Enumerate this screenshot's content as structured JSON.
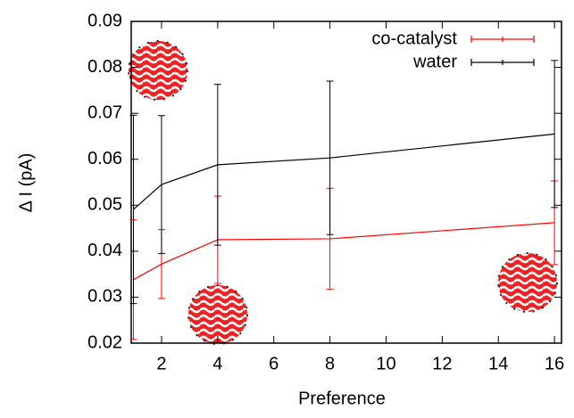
{
  "chart_data": {
    "type": "line",
    "x_label": "Preference",
    "y_label": "Δ I (pA)",
    "x": [
      1,
      2,
      4,
      8,
      16
    ],
    "series": [
      {
        "name": "co-catalyst",
        "color": "#ff0000",
        "values": [
          0.0338,
          0.0372,
          0.0425,
          0.0427,
          0.0462
        ],
        "errors": [
          0.013,
          0.0075,
          0.0095,
          0.011,
          0.0091
        ]
      },
      {
        "name": "water",
        "color": "#000000",
        "values": [
          0.0491,
          0.0545,
          0.0588,
          0.0603,
          0.0655
        ],
        "errors": [
          0.0205,
          0.015,
          0.0175,
          0.0167,
          0.016
        ]
      }
    ],
    "xlim": [
      0.92,
      16.25
    ],
    "xticks": [
      2,
      4,
      6,
      8,
      10,
      12,
      14,
      16
    ],
    "ylim": [
      0.02,
      0.09
    ],
    "yticks": [
      0.02,
      0.03,
      0.04,
      0.05,
      0.06,
      0.07,
      0.08,
      0.09
    ],
    "legend": "top-right"
  }
}
